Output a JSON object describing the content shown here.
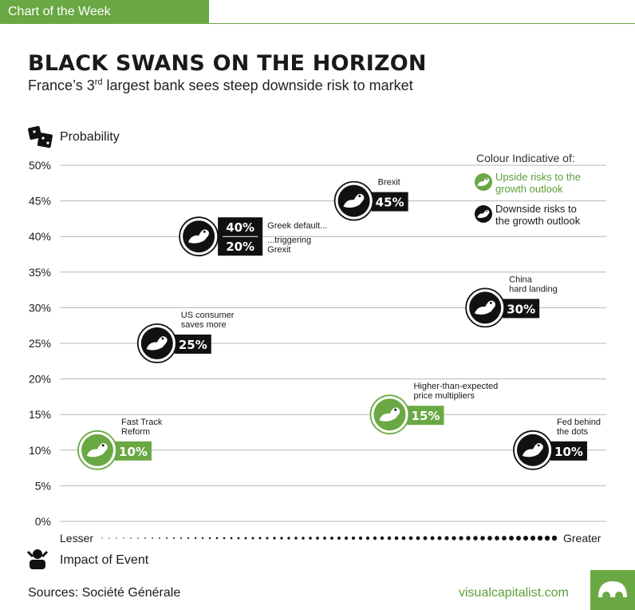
{
  "header": {
    "tag": "Chart of the Week",
    "title": "BLACK SWANS ON THE HORIZON",
    "subtitle_pre": "France’s 3",
    "subtitle_sup": "rd",
    "subtitle_post": " largest bank sees steep downside risk to market"
  },
  "footer": {
    "sources": "Sources: Société Générale",
    "site": "visualcapitalist.com"
  },
  "colors": {
    "upside": "#6aa843",
    "downside": "#111111"
  },
  "chart_data": {
    "type": "scatter",
    "ylabel": "Probability",
    "xlabel": "Impact of Event",
    "x_min_label": "Lesser",
    "x_max_label": "Greater",
    "ylim": [
      0,
      50
    ],
    "yticks": [
      "0%",
      "5%",
      "10%",
      "15%",
      "20%",
      "25%",
      "30%",
      "35%",
      "40%",
      "45%",
      "50%"
    ],
    "legend": {
      "title": "Colour Indicative of:",
      "position": "top-right",
      "items": [
        {
          "label_lines": [
            "Upside risks to the",
            "growth outlook"
          ],
          "type": "upside"
        },
        {
          "label_lines": [
            "Downside risks to",
            "the growth outlook"
          ],
          "type": "downside"
        }
      ]
    },
    "points": [
      {
        "name": "fast-track-reform",
        "label_lines": [
          "Fast Track",
          "Reform"
        ],
        "impact": 1.5,
        "y": 10,
        "value_label": "10%",
        "type": "upside"
      },
      {
        "name": "us-consumer",
        "label_lines": [
          "US consumer",
          "saves more"
        ],
        "impact": 2.5,
        "y": 25,
        "value_label": "25%",
        "type": "downside"
      },
      {
        "name": "greek-default",
        "label_lines": [
          "Greek default..."
        ],
        "impact": 3.2,
        "y": 40,
        "value_label": "40%",
        "type": "downside"
      },
      {
        "name": "brexit",
        "label_lines": [
          "Brexit"
        ],
        "impact": 5.8,
        "y": 45,
        "value_label": "45%",
        "type": "downside"
      },
      {
        "name": "price-multipliers",
        "label_lines": [
          "Higher-than-expected",
          "price multipliers"
        ],
        "impact": 6.4,
        "y": 15,
        "value_label": "15%",
        "type": "upside"
      },
      {
        "name": "china-hard-landing",
        "label_lines": [
          "China",
          "hard landing"
        ],
        "impact": 8.0,
        "y": 30,
        "value_label": "30%",
        "type": "downside"
      },
      {
        "name": "fed-behind-dots",
        "label_lines": [
          "Fed behind",
          "the dots"
        ],
        "impact": 8.8,
        "y": 10,
        "value_label": "10%",
        "type": "downside"
      }
    ],
    "secondary": {
      "attached_to": "greek-default",
      "label_lines": [
        "...triggering",
        "Grexit"
      ],
      "value_label": "20%",
      "type": "downside"
    }
  }
}
